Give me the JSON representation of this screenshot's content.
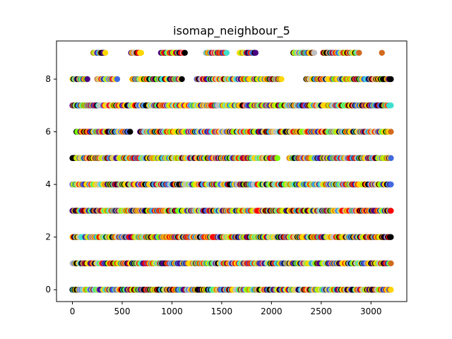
{
  "chart_data": {
    "type": "scatter",
    "title": "isomap_neighbour_5",
    "xlabel": "",
    "ylabel": "",
    "xlim": [
      -160,
      3360
    ],
    "ylim": [
      -0.45,
      9.45
    ],
    "xticks": [
      0,
      500,
      1000,
      1500,
      2000,
      2500,
      3000
    ],
    "yticks": [
      0,
      2,
      4,
      6,
      8
    ],
    "grid": false,
    "legend": "none",
    "marker": "circle",
    "point_spacing": 10,
    "rows": [
      {
        "y": 0,
        "ranges": [
          [
            0,
            3200
          ]
        ]
      },
      {
        "y": 1,
        "ranges": [
          [
            0,
            3200
          ]
        ]
      },
      {
        "y": 2,
        "ranges": [
          [
            0,
            3200
          ]
        ]
      },
      {
        "y": 3,
        "ranges": [
          [
            0,
            3200
          ]
        ]
      },
      {
        "y": 4,
        "ranges": [
          [
            0,
            3200
          ]
        ]
      },
      {
        "y": 5,
        "ranges": [
          [
            0,
            2060
          ],
          [
            2180,
            3200
          ]
        ]
      },
      {
        "y": 6,
        "ranges": [
          [
            40,
            580
          ],
          [
            680,
            3200
          ]
        ]
      },
      {
        "y": 7,
        "ranges": [
          [
            0,
            3200
          ]
        ]
      },
      {
        "y": 8,
        "ranges": [
          [
            0,
            150
          ],
          [
            250,
            450
          ],
          [
            600,
            1100
          ],
          [
            1250,
            2100
          ],
          [
            2350,
            3200
          ]
        ]
      },
      {
        "y": 9,
        "ranges": [
          [
            210,
            330
          ],
          [
            590,
            690
          ],
          [
            890,
            1130
          ],
          [
            1340,
            1550
          ],
          [
            1680,
            1840
          ],
          [
            2220,
            2430
          ],
          [
            2520,
            2880
          ],
          [
            3110,
            3110
          ]
        ]
      }
    ],
    "palette": [
      "#ff0000",
      "#ffd700",
      "#7cfc00",
      "#40e0d0",
      "#4b0082",
      "#d2691e",
      "#000000",
      "#c0c0c0",
      "#4169e1",
      "#ffd700"
    ]
  }
}
